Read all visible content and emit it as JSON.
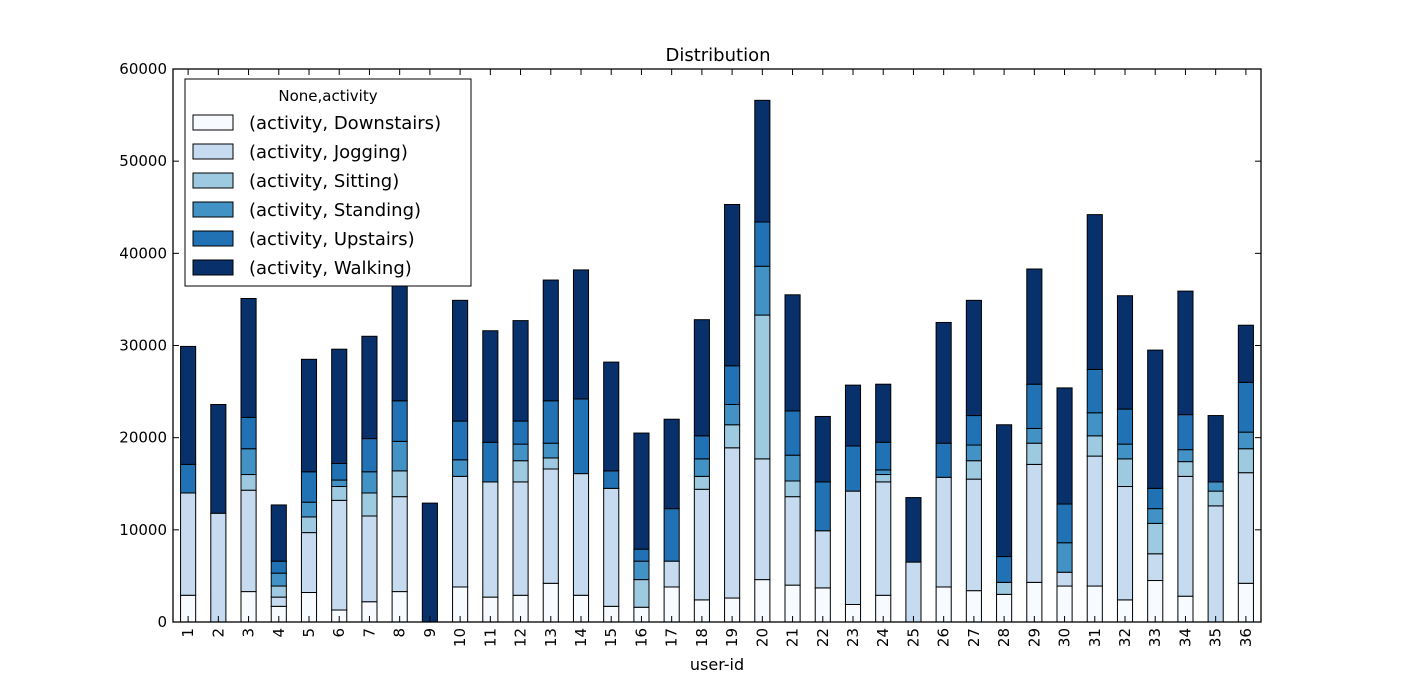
{
  "chart_data": {
    "type": "bar",
    "stacked": true,
    "title": "Distribution",
    "xlabel": "user-id",
    "ylabel": "",
    "ylim": [
      0,
      60000
    ],
    "yticks": [
      0,
      10000,
      20000,
      30000,
      40000,
      50000,
      60000
    ],
    "grid": false,
    "legend_position": "top-left",
    "legend_title": "None,activity",
    "categories": [
      "1",
      "2",
      "3",
      "4",
      "5",
      "6",
      "7",
      "8",
      "9",
      "10",
      "11",
      "12",
      "13",
      "14",
      "15",
      "16",
      "17",
      "18",
      "19",
      "20",
      "21",
      "22",
      "23",
      "24",
      "25",
      "26",
      "27",
      "28",
      "29",
      "30",
      "31",
      "32",
      "33",
      "34",
      "35",
      "36"
    ],
    "series": [
      {
        "name": "(activity, Downstairs)",
        "color": "#f7fbff",
        "values": [
          2900,
          0,
          3300,
          1700,
          3200,
          1300,
          2200,
          3300,
          0,
          3800,
          2700,
          2900,
          4200,
          2900,
          1700,
          1600,
          3800,
          2400,
          2600,
          4600,
          4000,
          3700,
          1900,
          2900,
          0,
          3800,
          3400,
          3000,
          4300,
          3900,
          3900,
          2400,
          4500,
          2800,
          0,
          4200
        ]
      },
      {
        "name": "(activity, Jogging)",
        "color": "#c6dbef",
        "values": [
          11100,
          11800,
          11000,
          1000,
          6500,
          11900,
          9300,
          10300,
          0,
          12000,
          12500,
          12300,
          12400,
          13200,
          12800,
          0,
          2800,
          12000,
          16300,
          13100,
          9600,
          6200,
          12300,
          12300,
          6500,
          11900,
          12100,
          0,
          12800,
          1500,
          14100,
          12300,
          2900,
          13000,
          12600,
          12000
        ]
      },
      {
        "name": "(activity, Sitting)",
        "color": "#9ecae1",
        "values": [
          0,
          0,
          1700,
          1200,
          1700,
          1500,
          2500,
          2800,
          0,
          0,
          0,
          2300,
          1200,
          0,
          0,
          3000,
          0,
          1400,
          2500,
          15600,
          1700,
          0,
          0,
          800,
          0,
          0,
          2000,
          1300,
          2300,
          0,
          2200,
          3000,
          3300,
          1600,
          1600,
          2600
        ]
      },
      {
        "name": "(activity, Standing)",
        "color": "#4292c6",
        "values": [
          0,
          0,
          2800,
          1400,
          1600,
          700,
          2300,
          3200,
          0,
          1800,
          0,
          1800,
          1600,
          0,
          0,
          2000,
          0,
          1900,
          2200,
          5300,
          2800,
          0,
          0,
          500,
          0,
          0,
          1700,
          0,
          1600,
          3200,
          2500,
          1600,
          1600,
          1300,
          1000,
          1800
        ]
      },
      {
        "name": "(activity, Upstairs)",
        "color": "#2171b5",
        "values": [
          3100,
          0,
          3400,
          1300,
          3300,
          1800,
          3600,
          4400,
          0,
          4200,
          4300,
          2500,
          4600,
          8100,
          1900,
          1300,
          5700,
          2500,
          4200,
          4800,
          4800,
          5300,
          4900,
          3000,
          0,
          3700,
          3200,
          2800,
          4800,
          4200,
          4700,
          3800,
          2200,
          3800,
          0,
          5400
        ]
      },
      {
        "name": "(activity, Walking)",
        "color": "#08306b",
        "values": [
          12800,
          11800,
          12900,
          6100,
          12200,
          12400,
          11100,
          13500,
          12900,
          13100,
          12100,
          10900,
          13100,
          14000,
          11800,
          12600,
          9700,
          12600,
          17500,
          13200,
          12600,
          7100,
          6600,
          6300,
          7000,
          13100,
          12500,
          14300,
          12500,
          12600,
          16800,
          12300,
          15000,
          13400,
          7200,
          6200
        ]
      }
    ]
  }
}
